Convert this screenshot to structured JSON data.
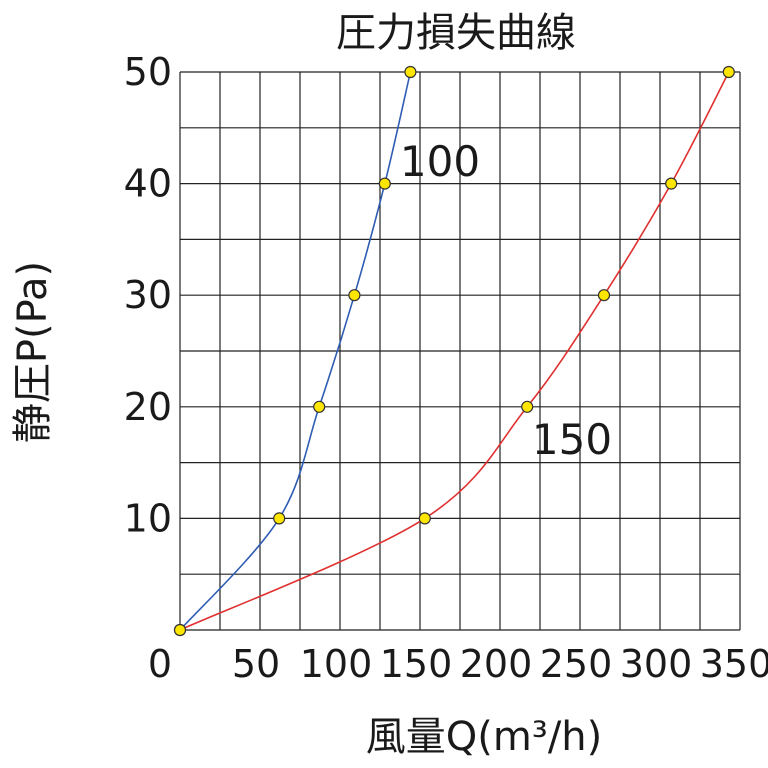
{
  "chart_data": {
    "type": "line",
    "title": "圧力損失曲線",
    "xlabel": "風量Q(m³/h)",
    "ylabel": "静圧P(Pa)",
    "xlim": [
      0,
      350
    ],
    "ylim": [
      0,
      50
    ],
    "x_ticks": [
      "0",
      "50",
      "100",
      "150",
      "200",
      "250",
      "300",
      "350"
    ],
    "y_ticks": [
      "10",
      "20",
      "30",
      "40",
      "50"
    ],
    "grid": true,
    "series": [
      {
        "name": "100",
        "color": "#2f5db3",
        "points": [
          [
            0,
            0
          ],
          [
            62,
            10
          ],
          [
            87,
            20
          ],
          [
            109,
            30
          ],
          [
            128,
            40
          ],
          [
            144,
            50
          ]
        ]
      },
      {
        "name": "150",
        "color": "#e03030",
        "points": [
          [
            0,
            0
          ],
          [
            153,
            10
          ],
          [
            217,
            20
          ],
          [
            265,
            30
          ],
          [
            307,
            40
          ],
          [
            343,
            50
          ]
        ]
      }
    ],
    "marker_color": "#ffe600"
  }
}
